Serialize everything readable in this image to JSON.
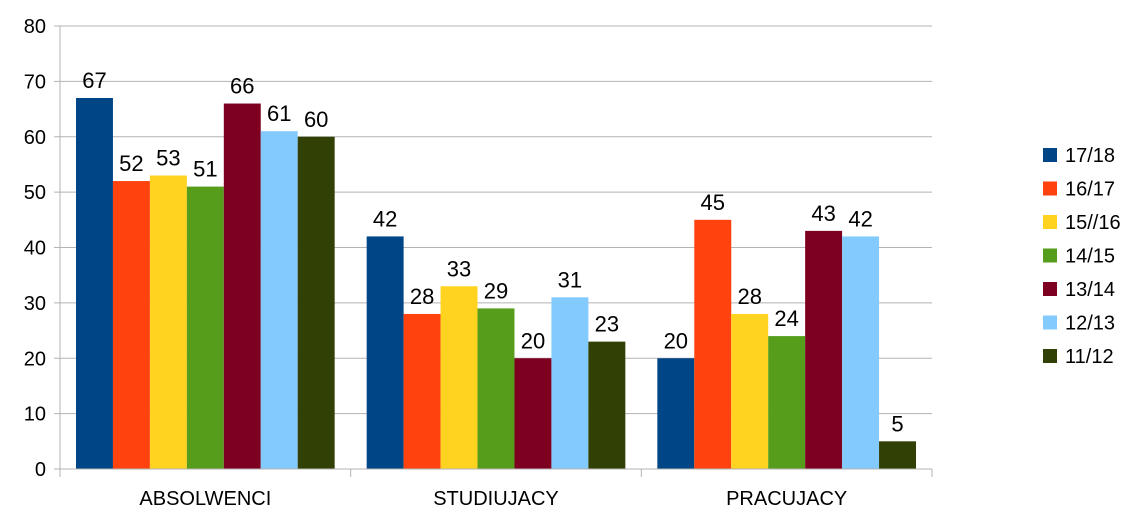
{
  "chart_data": {
    "type": "bar",
    "categories": [
      "ABSOLWENCI",
      "STUDIUJACY",
      "PRACUJACY"
    ],
    "series": [
      {
        "name": "17/18",
        "color": "#004586",
        "values": [
          67,
          42,
          20
        ]
      },
      {
        "name": "16/17",
        "color": "#ff420e",
        "values": [
          52,
          28,
          45
        ]
      },
      {
        "name": "15//16",
        "color": "#ffd320",
        "values": [
          53,
          33,
          28
        ]
      },
      {
        "name": "14/15",
        "color": "#579d1c",
        "values": [
          51,
          29,
          24
        ]
      },
      {
        "name": "13/14",
        "color": "#7e0021",
        "values": [
          66,
          20,
          43
        ]
      },
      {
        "name": "12/13",
        "color": "#83caff",
        "values": [
          61,
          31,
          42
        ]
      },
      {
        "name": "11/12",
        "color": "#314004",
        "values": [
          60,
          23,
          5
        ]
      }
    ],
    "ylim": [
      0,
      80
    ],
    "yticks": [
      0,
      10,
      20,
      30,
      40,
      50,
      60,
      70,
      80
    ],
    "grid": true,
    "legend_position": "right",
    "data_labels": true
  }
}
